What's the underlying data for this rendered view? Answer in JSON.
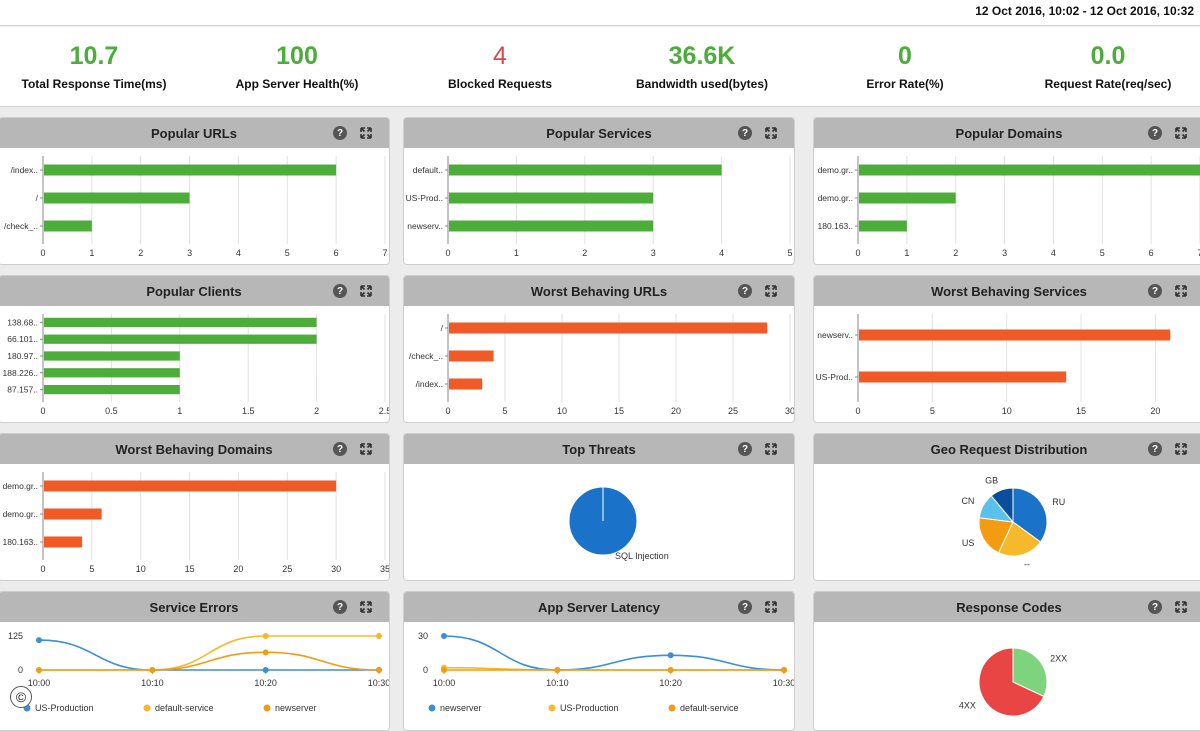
{
  "header": {
    "date_range": "12 Oct 2016, 10:02 - 12 Oct 2016, 10:32"
  },
  "kpis": [
    {
      "value": "10.7",
      "label": "Total Response Time(ms)",
      "color": "#4cad3a"
    },
    {
      "value": "100",
      "label": "App Server Health(%)",
      "color": "#4cad3a"
    },
    {
      "value": "4",
      "label": "Blocked Requests",
      "color": "#d24a4a"
    },
    {
      "value": "36.6K",
      "label": "Bandwidth used(bytes)",
      "color": "#4cad3a"
    },
    {
      "value": "0",
      "label": "Error Rate(%)",
      "color": "#4cad3a"
    },
    {
      "value": "0.0",
      "label": "Request Rate(req/sec)",
      "color": "#4cad3a"
    }
  ],
  "colors": {
    "green": "#4cad3a",
    "orange": "#ef5a26",
    "blue": "#1a73c8",
    "yellow": "#f6b92b",
    "light_orange": "#f39c12"
  },
  "panels": {
    "popular_urls": {
      "title": "Popular URLs"
    },
    "popular_services": {
      "title": "Popular Services"
    },
    "popular_domains": {
      "title": "Popular Domains"
    },
    "popular_clients": {
      "title": "Popular Clients"
    },
    "worst_urls": {
      "title": "Worst Behaving URLs"
    },
    "worst_services": {
      "title": "Worst Behaving Services"
    },
    "worst_domains": {
      "title": "Worst Behaving Domains"
    },
    "top_threats": {
      "title": "Top Threats"
    },
    "geo_distribution": {
      "title": "Geo Request Distribution"
    },
    "service_errors": {
      "title": "Service Errors"
    },
    "app_latency": {
      "title": "App Server Latency"
    },
    "response_codes": {
      "title": "Response Codes"
    }
  },
  "icons": {
    "help": "help-icon",
    "expand": "expand-icon",
    "copyright": "copyright-icon"
  },
  "copyright_symbol": "©",
  "chart_data": [
    {
      "id": "popular_urls",
      "type": "bar",
      "orientation": "horizontal",
      "color": "#4cad3a",
      "categories": [
        "/index..",
        "/",
        "/check_.."
      ],
      "values": [
        6,
        3,
        1
      ],
      "xlim": [
        0,
        7
      ],
      "ticks": [
        "0",
        "1",
        "2",
        "3",
        "4",
        "5",
        "6",
        "7"
      ]
    },
    {
      "id": "popular_services",
      "type": "bar",
      "orientation": "horizontal",
      "color": "#4cad3a",
      "categories": [
        "default..",
        "US-Prod..",
        "newserv.."
      ],
      "values": [
        4,
        3,
        3
      ],
      "xlim": [
        0,
        5
      ],
      "ticks": [
        "0",
        "1",
        "2",
        "3",
        "4",
        "5"
      ]
    },
    {
      "id": "popular_domains",
      "type": "bar",
      "orientation": "horizontal",
      "color": "#4cad3a",
      "categories": [
        "demo.gr..",
        "demo.gr..",
        "180.163.."
      ],
      "values": [
        7,
        2,
        1
      ],
      "xlim": [
        0,
        7
      ],
      "ticks": [
        "0",
        "1",
        "2",
        "3",
        "4",
        "5",
        "6",
        "7"
      ]
    },
    {
      "id": "popular_clients",
      "type": "bar",
      "orientation": "horizontal",
      "color": "#4cad3a",
      "categories": [
        "138.68..",
        "66.101..",
        "180.97..",
        "188.226..",
        "87.157.."
      ],
      "values": [
        2,
        2,
        1,
        1,
        1
      ],
      "xlim": [
        0,
        2.5
      ],
      "ticks": [
        "0",
        "0.5",
        "1",
        "1.5",
        "2",
        "2.5"
      ]
    },
    {
      "id": "worst_urls",
      "type": "bar",
      "orientation": "horizontal",
      "color": "#ef5a26",
      "categories": [
        "/",
        "/check_..",
        "/index.."
      ],
      "values": [
        28,
        4,
        3
      ],
      "xlim": [
        0,
        30
      ],
      "ticks": [
        "0",
        "5",
        "10",
        "15",
        "20",
        "25",
        "30"
      ]
    },
    {
      "id": "worst_services",
      "type": "bar",
      "orientation": "horizontal",
      "color": "#ef5a26",
      "categories": [
        "newserv..",
        "US-Prod.."
      ],
      "values": [
        21,
        14
      ],
      "xlim": [
        0,
        23
      ],
      "ticks": [
        "0",
        "5",
        "10",
        "15",
        "20"
      ]
    },
    {
      "id": "worst_domains",
      "type": "bar",
      "orientation": "horizontal",
      "color": "#ef5a26",
      "categories": [
        "demo.gr..",
        "demo.gr..",
        "180.163.."
      ],
      "values": [
        30,
        6,
        4
      ],
      "xlim": [
        0,
        35
      ],
      "ticks": [
        "0",
        "5",
        "10",
        "15",
        "20",
        "25",
        "30",
        "35"
      ]
    },
    {
      "id": "top_threats",
      "type": "pie",
      "slices": [
        {
          "label": "SQL Injection",
          "value": 100,
          "color": "#1a73c8"
        }
      ]
    },
    {
      "id": "geo_distribution",
      "type": "pie",
      "slices": [
        {
          "label": "RU",
          "value": 35,
          "color": "#1a73c8"
        },
        {
          "label": "--",
          "value": 22,
          "color": "#f6b92b"
        },
        {
          "label": "US",
          "value": 20,
          "color": "#f39c12"
        },
        {
          "label": "CN",
          "value": 12,
          "color": "#5bc0eb"
        },
        {
          "label": "GB",
          "value": 11,
          "color": "#0b4f9c"
        }
      ]
    },
    {
      "id": "service_errors",
      "type": "line",
      "x": [
        "10:00",
        "10:10",
        "10:20",
        "10:30"
      ],
      "ylim": [
        0,
        125
      ],
      "yticks": [
        "0",
        "125"
      ],
      "series": [
        {
          "name": "US-Production",
          "color": "#3a8fd6",
          "values": [
            110,
            0,
            0,
            0
          ]
        },
        {
          "name": "default-service",
          "color": "#f6b92b",
          "values": [
            0,
            0,
            125,
            125
          ]
        },
        {
          "name": "newserver",
          "color": "#f39c12",
          "values": [
            0,
            0,
            65,
            0
          ]
        }
      ]
    },
    {
      "id": "app_latency",
      "type": "line",
      "x": [
        "10:00",
        "10:10",
        "10:20",
        "10:30"
      ],
      "ylim": [
        0,
        30
      ],
      "yticks": [
        "0",
        "30"
      ],
      "series": [
        {
          "name": "newserver",
          "color": "#3a8fd6",
          "values": [
            30,
            0,
            13,
            0
          ]
        },
        {
          "name": "US-Production",
          "color": "#f6b92b",
          "values": [
            2,
            0,
            0,
            0
          ]
        },
        {
          "name": "default-service",
          "color": "#f39c12",
          "values": [
            0,
            0,
            0,
            0
          ]
        }
      ]
    },
    {
      "id": "response_codes",
      "type": "pie",
      "slices": [
        {
          "label": "2XX",
          "value": 32,
          "color": "#7ed47e"
        },
        {
          "label": "4XX",
          "value": 68,
          "color": "#e94545"
        }
      ]
    }
  ]
}
